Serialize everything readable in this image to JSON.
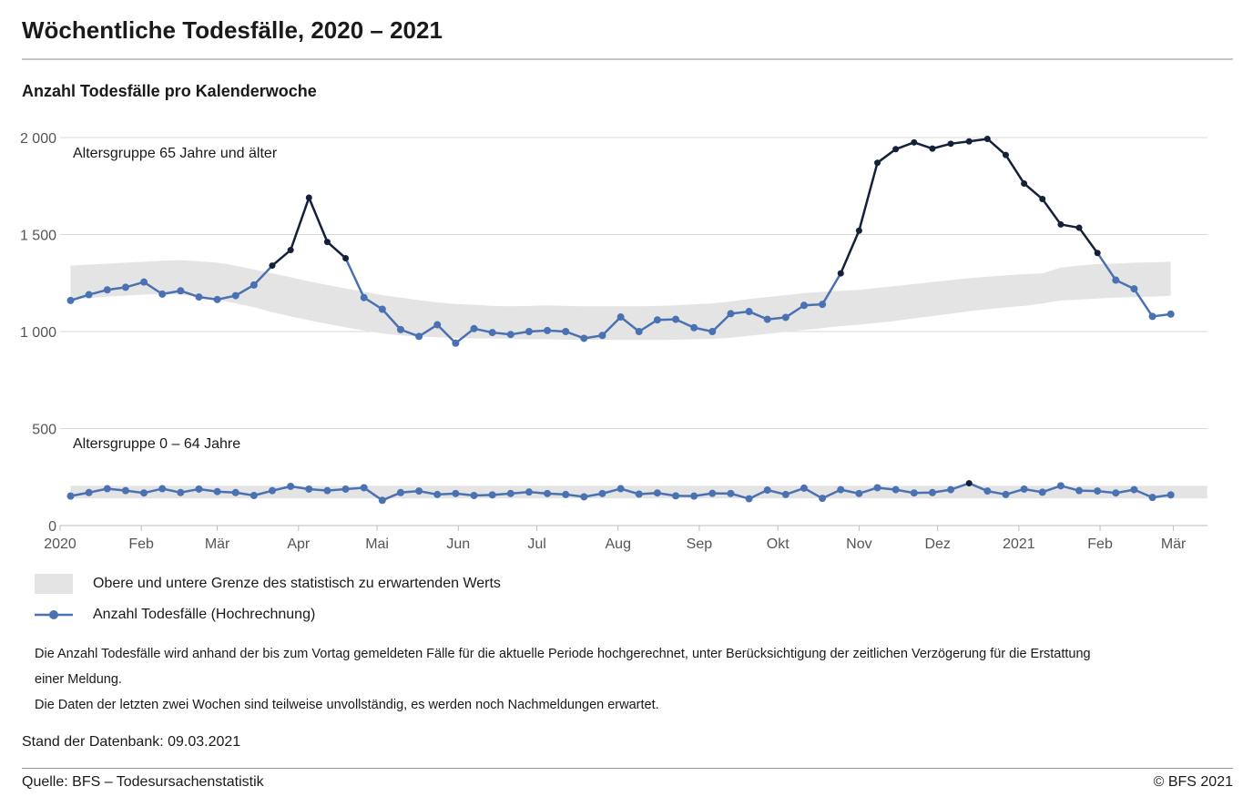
{
  "header": {
    "title": "Wöchentliche Todesfälle, 2020 – 2021",
    "subtitle": "Anzahl Todesfälle pro Kalenderwoche"
  },
  "legend": {
    "band_label": "Obere und untere Grenze des statistisch zu erwartenden Werts",
    "line_label": "Anzahl Todesfälle (Hochrechnung)"
  },
  "notes": {
    "line1": "Die Anzahl Todesfälle wird anhand der bis zum Vortag gemeldeten Fälle für die aktuelle Periode hochgerechnet, unter Berücksichtigung der zeitlichen Verzögerung für die Erstattung",
    "line2": "einer Meldung.",
    "line3": "Die Daten der letzten zwei Wochen sind teilweise unvollständig, es werden noch Nachmeldungen erwartet."
  },
  "footer": {
    "stand": "Stand der Datenbank: 09.03.2021",
    "source": "Quelle: BFS – Todesursachenstatistik",
    "copyright": "© BFS 2021"
  },
  "colors": {
    "series": "#4a72b2",
    "excess": "#15203a",
    "band": "#e4e4e4",
    "grid": "#d9d9d9"
  },
  "chart_data": {
    "type": "line",
    "title": "Anzahl Todesfälle pro Kalenderwoche",
    "ylim": [
      0,
      2000
    ],
    "yticks": [
      0,
      500,
      1000,
      1500,
      2000
    ],
    "ytick_labels": [
      "0",
      "500",
      "1 000",
      "1 500",
      "2 000"
    ],
    "x_unit": "Kalenderwoche",
    "xlim": [
      "2020-01-01",
      "2021-03-14"
    ],
    "xticks": [
      {
        "date": "2020-01-01",
        "label": "2020"
      },
      {
        "date": "2020-02-01",
        "label": "Feb"
      },
      {
        "date": "2020-03-01",
        "label": "Mär"
      },
      {
        "date": "2020-04-01",
        "label": "Apr"
      },
      {
        "date": "2020-05-01",
        "label": "Mai"
      },
      {
        "date": "2020-06-01",
        "label": "Jun"
      },
      {
        "date": "2020-07-01",
        "label": "Jul"
      },
      {
        "date": "2020-08-01",
        "label": "Aug"
      },
      {
        "date": "2020-09-01",
        "label": "Sep"
      },
      {
        "date": "2020-10-01",
        "label": "Okt"
      },
      {
        "date": "2020-11-01",
        "label": "Nov"
      },
      {
        "date": "2020-12-01",
        "label": "Dez"
      },
      {
        "date": "2021-01-01",
        "label": "2021"
      },
      {
        "date": "2021-02-01",
        "label": "Feb"
      },
      {
        "date": "2021-03-01",
        "label": "Mär"
      }
    ],
    "groups": [
      {
        "name": "Altersgruppe 65 Jahre und älter",
        "dates": [
          "2020-01-05",
          "2020-01-12",
          "2020-01-19",
          "2020-01-26",
          "2020-02-02",
          "2020-02-09",
          "2020-02-16",
          "2020-02-23",
          "2020-03-01",
          "2020-03-08",
          "2020-03-15",
          "2020-03-22",
          "2020-03-29",
          "2020-04-05",
          "2020-04-12",
          "2020-04-19",
          "2020-04-26",
          "2020-05-03",
          "2020-05-10",
          "2020-05-17",
          "2020-05-24",
          "2020-05-31",
          "2020-06-07",
          "2020-06-14",
          "2020-06-21",
          "2020-06-28",
          "2020-07-05",
          "2020-07-12",
          "2020-07-19",
          "2020-07-26",
          "2020-08-02",
          "2020-08-09",
          "2020-08-16",
          "2020-08-23",
          "2020-08-30",
          "2020-09-06",
          "2020-09-13",
          "2020-09-20",
          "2020-09-27",
          "2020-10-04",
          "2020-10-11",
          "2020-10-18",
          "2020-10-25",
          "2020-11-01",
          "2020-11-08",
          "2020-11-15",
          "2020-11-22",
          "2020-11-29",
          "2020-12-06",
          "2020-12-13",
          "2020-12-20",
          "2020-12-27",
          "2021-01-03",
          "2021-01-10",
          "2021-01-17",
          "2021-01-24",
          "2021-01-31",
          "2021-02-07",
          "2021-02-14",
          "2021-02-21",
          "2021-02-28"
        ],
        "values": [
          1160,
          1190,
          1215,
          1228,
          1255,
          1193,
          1210,
          1178,
          1165,
          1185,
          1240,
          1340,
          1420,
          1690,
          1462,
          1378,
          1175,
          1115,
          1010,
          975,
          1035,
          940,
          1015,
          995,
          985,
          1000,
          1005,
          1000,
          965,
          980,
          1075,
          1000,
          1060,
          1063,
          1020,
          1000,
          1092,
          1103,
          1063,
          1073,
          1135,
          1140,
          1300,
          1520,
          1870,
          1940,
          1975,
          1943,
          1968,
          1980,
          1993,
          1910,
          1763,
          1683,
          1552,
          1535,
          1405,
          1265,
          1220,
          1078,
          1090
        ],
        "band_upper": [
          1340,
          1345,
          1350,
          1355,
          1360,
          1365,
          1368,
          1362,
          1355,
          1340,
          1320,
          1300,
          1280,
          1258,
          1240,
          1222,
          1205,
          1188,
          1175,
          1162,
          1150,
          1142,
          1138,
          1132,
          1130,
          1132,
          1135,
          1132,
          1130,
          1130,
          1130,
          1130,
          1132,
          1135,
          1140,
          1145,
          1155,
          1168,
          1178,
          1188,
          1198,
          1205,
          1210,
          1215,
          1225,
          1235,
          1245,
          1255,
          1265,
          1275,
          1282,
          1290,
          1296,
          1300,
          1330,
          1340,
          1348,
          1350,
          1355,
          1357,
          1360
        ],
        "band_lower": [
          1165,
          1172,
          1180,
          1185,
          1190,
          1195,
          1190,
          1180,
          1165,
          1145,
          1125,
          1100,
          1078,
          1058,
          1040,
          1022,
          1005,
          990,
          980,
          975,
          970,
          968,
          965,
          965,
          962,
          960,
          960,
          958,
          958,
          958,
          957,
          957,
          957,
          958,
          960,
          962,
          968,
          978,
          988,
          998,
          1008,
          1018,
          1028,
          1035,
          1045,
          1055,
          1068,
          1080,
          1092,
          1105,
          1115,
          1125,
          1132,
          1145,
          1160,
          1165,
          1170,
          1175,
          1178,
          1180,
          1185
        ]
      },
      {
        "name": "Altersgruppe 0 – 64 Jahre",
        "dates": [
          "2020-01-05",
          "2020-01-12",
          "2020-01-19",
          "2020-01-26",
          "2020-02-02",
          "2020-02-09",
          "2020-02-16",
          "2020-02-23",
          "2020-03-01",
          "2020-03-08",
          "2020-03-15",
          "2020-03-22",
          "2020-03-29",
          "2020-04-05",
          "2020-04-12",
          "2020-04-19",
          "2020-04-26",
          "2020-05-03",
          "2020-05-10",
          "2020-05-17",
          "2020-05-24",
          "2020-05-31",
          "2020-06-07",
          "2020-06-14",
          "2020-06-21",
          "2020-06-28",
          "2020-07-05",
          "2020-07-12",
          "2020-07-19",
          "2020-07-26",
          "2020-08-02",
          "2020-08-09",
          "2020-08-16",
          "2020-08-23",
          "2020-08-30",
          "2020-09-06",
          "2020-09-13",
          "2020-09-20",
          "2020-09-27",
          "2020-10-04",
          "2020-10-11",
          "2020-10-18",
          "2020-10-25",
          "2020-11-01",
          "2020-11-08",
          "2020-11-15",
          "2020-11-22",
          "2020-11-29",
          "2020-12-06",
          "2020-12-13",
          "2020-12-20",
          "2020-12-27",
          "2021-01-03",
          "2021-01-10",
          "2021-01-17",
          "2021-01-24",
          "2021-01-31",
          "2021-02-07",
          "2021-02-14",
          "2021-02-21",
          "2021-02-28"
        ],
        "values": [
          152,
          170,
          190,
          180,
          168,
          190,
          170,
          188,
          175,
          170,
          155,
          180,
          202,
          188,
          180,
          188,
          195,
          130,
          170,
          178,
          160,
          165,
          155,
          158,
          165,
          173,
          165,
          160,
          148,
          165,
          190,
          162,
          168,
          153,
          152,
          166,
          165,
          138,
          183,
          160,
          193,
          140,
          185,
          165,
          195,
          185,
          168,
          170,
          185,
          218,
          178,
          160,
          188,
          172,
          205,
          180,
          178,
          168,
          185,
          145,
          158
        ]
      }
    ],
    "group_bands": [
      {
        "upper": 205,
        "lower": 140
      }
    ],
    "excess_note": "Punkte über der oberen Grenze werden dunkel dargestellt"
  }
}
